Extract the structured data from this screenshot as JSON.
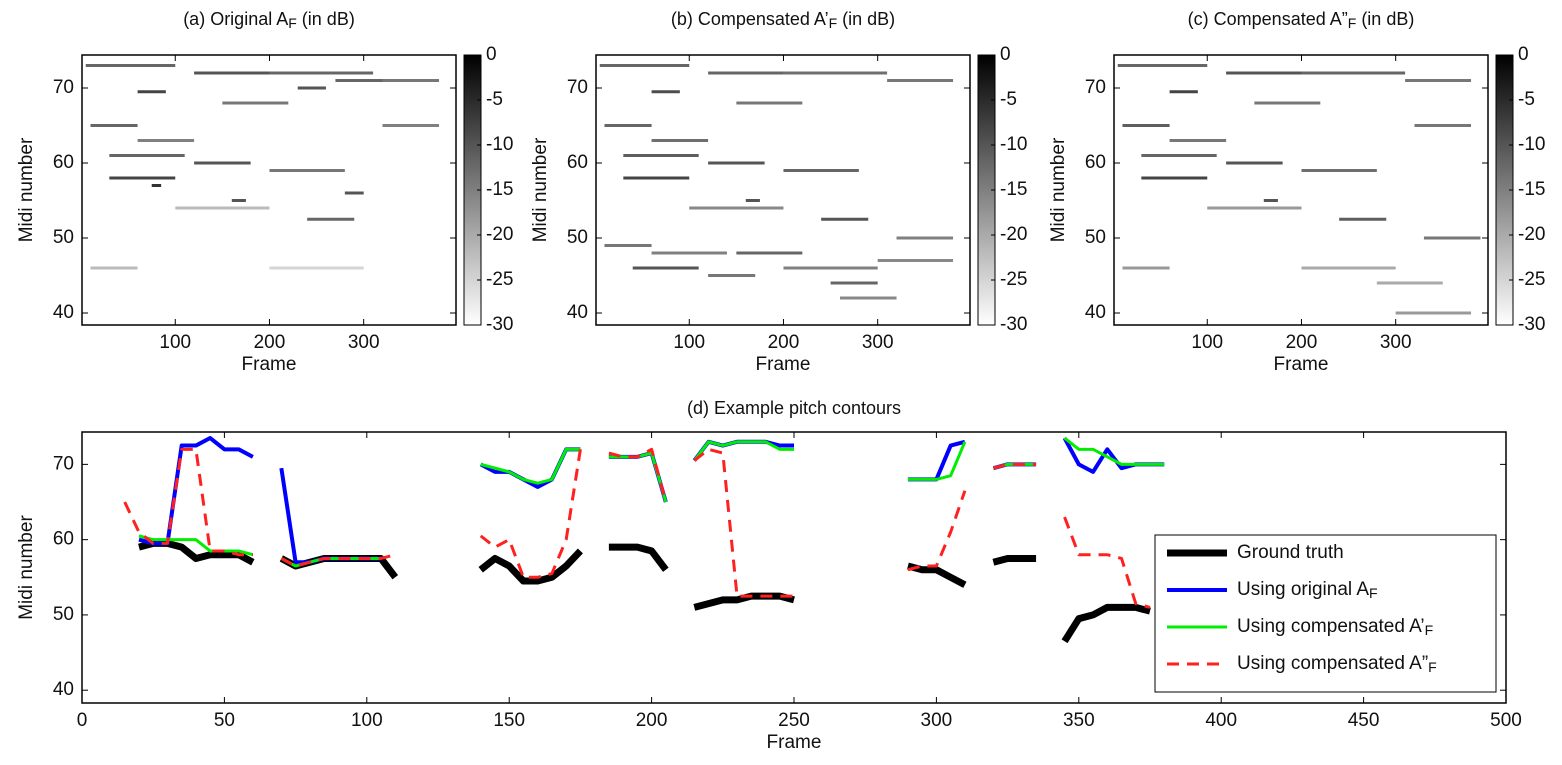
{
  "chart_data": [
    {
      "type": "heatmap",
      "title": [
        "(a) Original A",
        "F",
        "(in dB)"
      ],
      "xlabel": "Frame",
      "ylabel": "Midi number",
      "xlim": [
        1,
        398
      ],
      "ylim": [
        38.4,
        74.4
      ],
      "xticks": [
        100,
        200,
        300
      ],
      "yticks": [
        40,
        50,
        60,
        70
      ],
      "clim": [
        -30,
        0
      ],
      "cticks": [
        0,
        -5,
        -10,
        -15,
        -20,
        -25,
        -30
      ],
      "segments": [
        [
          5,
          100,
          73,
          -12
        ],
        [
          120,
          200,
          72,
          -10
        ],
        [
          200,
          310,
          72,
          -12
        ],
        [
          310,
          380,
          71,
          -14
        ],
        [
          60,
          90,
          69.5,
          -8
        ],
        [
          150,
          220,
          68,
          -14
        ],
        [
          10,
          60,
          65,
          -12
        ],
        [
          60,
          120,
          63,
          -15
        ],
        [
          30,
          110,
          61,
          -12
        ],
        [
          120,
          180,
          60,
          -10
        ],
        [
          200,
          280,
          59,
          -14
        ],
        [
          30,
          100,
          58,
          -8
        ],
        [
          75,
          85,
          57,
          -6
        ],
        [
          160,
          175,
          55,
          -10
        ],
        [
          240,
          290,
          52.5,
          -12
        ],
        [
          280,
          300,
          56,
          -10
        ],
        [
          100,
          200,
          54,
          -22
        ],
        [
          10,
          60,
          46,
          -22
        ],
        [
          200,
          300,
          46,
          -25
        ],
        [
          320,
          380,
          65,
          -15
        ],
        [
          230,
          260,
          70,
          -10
        ],
        [
          270,
          320,
          71,
          -12
        ]
      ]
    },
    {
      "type": "heatmap",
      "title": [
        "(b) Compensated A’",
        "F",
        "(in dB)"
      ],
      "xlabel": "Frame",
      "ylabel": "Midi number",
      "xlim": [
        1,
        398
      ],
      "ylim": [
        38.4,
        74.4
      ],
      "xticks": [
        100,
        200,
        300
      ],
      "yticks": [
        40,
        50,
        60,
        70
      ],
      "clim": [
        -30,
        0
      ],
      "cticks": [
        0,
        -5,
        -10,
        -15,
        -20,
        -25,
        -30
      ],
      "segments": [
        [
          5,
          100,
          73,
          -12
        ],
        [
          120,
          200,
          72,
          -12
        ],
        [
          200,
          310,
          72,
          -13
        ],
        [
          310,
          380,
          71,
          -14
        ],
        [
          60,
          90,
          69.5,
          -9
        ],
        [
          150,
          220,
          68,
          -14
        ],
        [
          10,
          60,
          65,
          -12
        ],
        [
          60,
          120,
          63,
          -13
        ],
        [
          30,
          110,
          61,
          -11
        ],
        [
          120,
          180,
          60,
          -10
        ],
        [
          200,
          280,
          59,
          -12
        ],
        [
          30,
          100,
          58,
          -8
        ],
        [
          160,
          175,
          55,
          -10
        ],
        [
          240,
          290,
          52.5,
          -10
        ],
        [
          100,
          200,
          54,
          -16
        ],
        [
          10,
          60,
          49,
          -14
        ],
        [
          60,
          140,
          48,
          -15
        ],
        [
          150,
          220,
          48,
          -12
        ],
        [
          40,
          110,
          46,
          -10
        ],
        [
          120,
          170,
          45,
          -14
        ],
        [
          200,
          300,
          46,
          -15
        ],
        [
          250,
          300,
          44,
          -12
        ],
        [
          260,
          320,
          42,
          -16
        ],
        [
          320,
          380,
          50,
          -15
        ],
        [
          300,
          380,
          47,
          -16
        ]
      ]
    },
    {
      "type": "heatmap",
      "title": [
        "(c) Compensated A”",
        "F",
        "(in dB)"
      ],
      "xlabel": "Frame",
      "ylabel": "Midi number",
      "xlim": [
        1,
        398
      ],
      "ylim": [
        38.4,
        74.4
      ],
      "xticks": [
        100,
        200,
        300
      ],
      "yticks": [
        40,
        50,
        60,
        70
      ],
      "clim": [
        -30,
        0
      ],
      "cticks": [
        0,
        -5,
        -10,
        -15,
        -20,
        -25,
        -30
      ],
      "segments": [
        [
          5,
          100,
          73,
          -12
        ],
        [
          120,
          200,
          72,
          -10
        ],
        [
          200,
          310,
          72,
          -12
        ],
        [
          310,
          380,
          71,
          -14
        ],
        [
          60,
          90,
          69.5,
          -8
        ],
        [
          150,
          220,
          68,
          -14
        ],
        [
          10,
          60,
          65,
          -11
        ],
        [
          60,
          120,
          63,
          -14
        ],
        [
          30,
          110,
          61,
          -12
        ],
        [
          120,
          180,
          60,
          -10
        ],
        [
          200,
          280,
          59,
          -13
        ],
        [
          30,
          100,
          58,
          -8
        ],
        [
          160,
          175,
          55,
          -10
        ],
        [
          240,
          290,
          52.5,
          -11
        ],
        [
          100,
          200,
          54,
          -18
        ],
        [
          10,
          60,
          46,
          -18
        ],
        [
          200,
          300,
          46,
          -20
        ],
        [
          320,
          380,
          65,
          -14
        ],
        [
          330,
          390,
          50,
          -14
        ],
        [
          280,
          350,
          44,
          -20
        ],
        [
          300,
          380,
          40,
          -18
        ]
      ]
    },
    {
      "type": "line",
      "title": "(d) Example pitch contours",
      "xlabel": "Frame",
      "ylabel": "Midi number",
      "xlim": [
        0,
        500
      ],
      "ylim": [
        38.3,
        74.3
      ],
      "xticks": [
        0,
        50,
        100,
        150,
        200,
        250,
        300,
        350,
        400,
        450,
        500
      ],
      "yticks": [
        40,
        50,
        60,
        70
      ],
      "legend": "lower right",
      "x": [
        15,
        20,
        25,
        30,
        35,
        40,
        45,
        50,
        55,
        60,
        65,
        70,
        75,
        80,
        85,
        90,
        95,
        100,
        105,
        110,
        115,
        120,
        125,
        130,
        135,
        140,
        145,
        150,
        155,
        160,
        165,
        170,
        175,
        180,
        185,
        190,
        195,
        200,
        205,
        210,
        215,
        220,
        225,
        230,
        235,
        240,
        245,
        250,
        255,
        260,
        265,
        270,
        275,
        280,
        285,
        290,
        295,
        300,
        305,
        310,
        315,
        320,
        325,
        330,
        335,
        340,
        345,
        350,
        355,
        360,
        365,
        370,
        375,
        380
      ],
      "series": [
        {
          "name": [
            "Ground truth"
          ],
          "color": "#000000",
          "width": 7,
          "dash": false,
          "values": [
            null,
            59,
            59.5,
            59.5,
            59,
            57.5,
            58,
            58,
            58,
            57,
            null,
            57.5,
            56.5,
            57,
            57.5,
            57.5,
            57.5,
            57.5,
            57.5,
            55,
            null,
            null,
            null,
            null,
            null,
            56,
            57.5,
            56.5,
            54.5,
            54.5,
            55,
            56.5,
            58.5,
            null,
            59,
            59,
            59,
            58.5,
            56,
            null,
            51,
            51.5,
            52,
            52,
            52.5,
            52.5,
            52.5,
            52,
            null,
            null,
            null,
            null,
            null,
            null,
            null,
            56.5,
            56,
            56,
            55,
            54,
            null,
            57,
            57.5,
            57.5,
            57.5,
            null,
            46.5,
            49.5,
            50,
            51,
            51,
            51,
            50.5,
            null
          ]
        },
        {
          "name": [
            "Using original A",
            "F"
          ],
          "color": "#0000ff",
          "width": 4,
          "dash": false,
          "values": [
            null,
            60,
            59.5,
            59.5,
            72.5,
            72.5,
            73.5,
            72,
            72,
            71,
            null,
            69.5,
            57,
            57,
            57.5,
            57.5,
            57.5,
            57.5,
            57.5,
            null,
            null,
            null,
            null,
            null,
            null,
            70,
            69,
            69,
            68,
            67,
            68,
            72,
            72,
            null,
            71,
            71,
            71,
            71.5,
            65,
            null,
            70.5,
            73,
            72.5,
            73,
            73,
            73,
            72.5,
            72.5,
            null,
            null,
            null,
            null,
            null,
            null,
            null,
            68,
            68,
            68,
            72.5,
            73,
            null,
            69.5,
            70,
            70,
            70,
            null,
            73.5,
            70,
            69,
            72,
            69.5,
            70,
            70,
            70
          ]
        },
        {
          "name": [
            "Using compensated A’",
            "F"
          ],
          "color": "#00ee00",
          "width": 3,
          "dash": false,
          "values": [
            null,
            60.5,
            60,
            60,
            60,
            60,
            58.5,
            58.5,
            58.5,
            58,
            null,
            57.5,
            56.5,
            57,
            57.5,
            57.5,
            57.5,
            57.5,
            57.5,
            null,
            null,
            null,
            null,
            null,
            null,
            70,
            69.5,
            69,
            68,
            67.5,
            68,
            72,
            72,
            null,
            71,
            71,
            71,
            71.5,
            65,
            null,
            70.5,
            73,
            72.5,
            73,
            73,
            73,
            72,
            72,
            null,
            null,
            null,
            null,
            null,
            null,
            null,
            68,
            68,
            68,
            68.5,
            73,
            null,
            69.5,
            70,
            70,
            70,
            null,
            73.5,
            72,
            72,
            71,
            70,
            70,
            70,
            70
          ]
        },
        {
          "name": [
            "Using compensated A”",
            "F"
          ],
          "color": "#ff2020",
          "width": 3,
          "dash": true,
          "values": [
            65,
            61,
            59.5,
            59.5,
            72,
            72,
            58.5,
            58.5,
            58,
            58,
            null,
            57.5,
            56.5,
            57,
            57.5,
            57.5,
            57.5,
            57.5,
            57.5,
            58,
            null,
            null,
            null,
            null,
            null,
            60.5,
            59,
            60,
            55,
            55,
            55.5,
            60,
            72,
            null,
            71.5,
            71,
            71,
            72,
            65,
            null,
            70.5,
            72,
            71.5,
            52.5,
            52.5,
            52.5,
            52.5,
            52.5,
            null,
            null,
            null,
            null,
            null,
            null,
            null,
            56,
            56.5,
            56.5,
            61,
            66.5,
            null,
            69.5,
            70,
            70,
            70,
            null,
            63,
            58,
            58,
            58,
            57.5,
            51.5,
            51,
            null
          ]
        }
      ]
    }
  ]
}
